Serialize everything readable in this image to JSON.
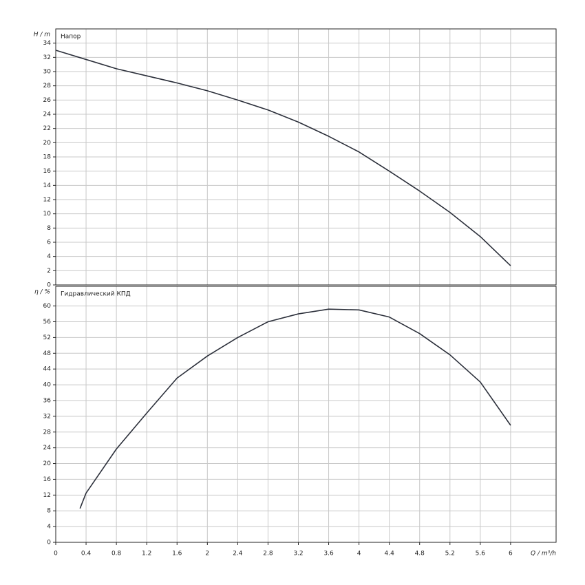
{
  "chart_data": [
    {
      "type": "line",
      "title": "Напор",
      "ylabel": "H / m",
      "x": [
        0,
        0.4,
        0.8,
        1.2,
        1.6,
        2,
        2.4,
        2.8,
        3.2,
        3.6,
        4,
        4.4,
        4.8,
        5.2,
        5.6,
        6
      ],
      "series": [
        {
          "name": "Напор",
          "color": "#2b2f3a",
          "values": [
            33,
            31.7,
            30.4,
            29.4,
            28.4,
            27.3,
            26,
            24.6,
            22.9,
            20.9,
            18.7,
            16,
            13.2,
            10.2,
            6.8,
            2.7
          ]
        }
      ],
      "xlim": [
        0,
        6.6
      ],
      "xticks": [
        0,
        0.4,
        0.8,
        1.2,
        1.6,
        2,
        2.4,
        2.8,
        3.2,
        3.6,
        4,
        4.4,
        4.8,
        5.2,
        5.6,
        6
      ],
      "ylim": [
        0,
        36
      ],
      "yticks": [
        0,
        2,
        4,
        6,
        8,
        10,
        12,
        14,
        16,
        18,
        20,
        22,
        24,
        26,
        28,
        30,
        32,
        34
      ],
      "grid": true
    },
    {
      "type": "line",
      "title": "Гидравлический КПД",
      "ylabel": "η / %",
      "xlabel": "Q / m³/h",
      "x": [
        0.32,
        0.4,
        0.8,
        1.2,
        1.6,
        2,
        2.4,
        2.8,
        3.2,
        3.6,
        4,
        4.4,
        4.8,
        5.2,
        5.6,
        6
      ],
      "series": [
        {
          "name": "Гидравлический КПД",
          "color": "#2b2f3a",
          "values": [
            8.6,
            12.5,
            23.7,
            32.8,
            41.7,
            47.3,
            52,
            56,
            58,
            59.2,
            59,
            57.2,
            53,
            47.6,
            40.7,
            29.7
          ]
        }
      ],
      "xlim": [
        0,
        6.6
      ],
      "xticks": [
        0,
        0.4,
        0.8,
        1.2,
        1.6,
        2,
        2.4,
        2.8,
        3.2,
        3.6,
        4,
        4.4,
        4.8,
        5.2,
        5.6,
        6
      ],
      "ylim": [
        0,
        65
      ],
      "yticks": [
        0,
        4,
        8,
        12,
        16,
        20,
        24,
        28,
        32,
        36,
        40,
        44,
        48,
        52,
        56,
        60
      ],
      "grid": true
    }
  ]
}
